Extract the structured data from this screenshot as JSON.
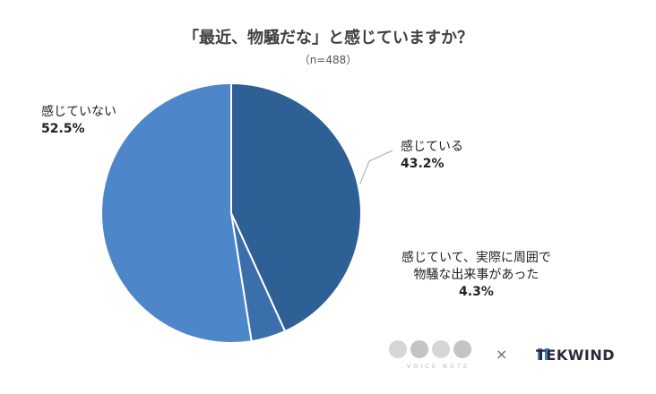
{
  "chart_data": {
    "type": "pie",
    "title": "「最近、物騒だな」と感じていますか？",
    "subtitle": "（n=488）",
    "slices": [
      {
        "label": "感じている",
        "label_lines": [
          "感じている"
        ],
        "value": 43.2,
        "value_label": "43.2%",
        "color": "#2e5f95"
      },
      {
        "label": "感じていて、実際に周囲で物騒な出来事があった",
        "label_lines": [
          "感じていて、実際に周囲で",
          "物騒な出来事があった"
        ],
        "value": 4.3,
        "value_label": "4.3%",
        "color": "#3a6fac"
      },
      {
        "label": "感じていない",
        "label_lines": [
          "感じていない"
        ],
        "value": 52.5,
        "value_label": "52.5%",
        "color": "#4d87c9"
      }
    ]
  },
  "branding": {
    "voice_note": "VOICE NOTE",
    "times": "×",
    "tekwind": "TEKWIND"
  }
}
